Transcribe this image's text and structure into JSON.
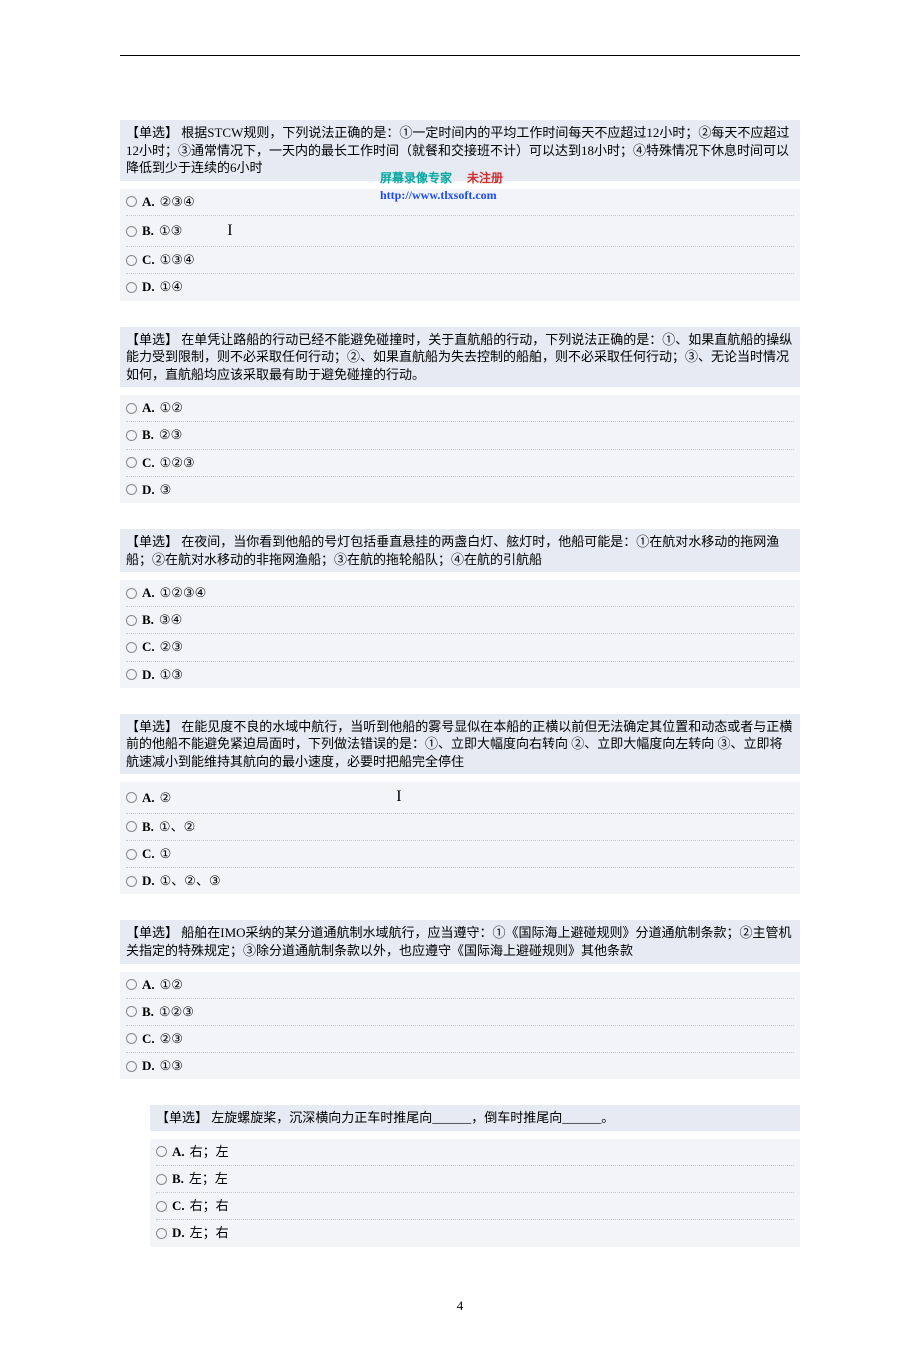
{
  "watermark": {
    "line1a": "屏幕录像专家",
    "line1b": "未注册",
    "line2": "http://www.tlxsoft.com"
  },
  "questions": [
    {
      "prompt": "【单选】 根据STCW规则，下列说法正确的是：①一定时间内的平均工作时间每天不应超过12小时；②每天不应超过12小时；③通常情况下，一天内的最长工作时间（就餐和交接班不计）可以达到18小时；④特殊情况下休息时间可以降低到少于连续的6小时",
      "options": [
        {
          "label": "A.",
          "text": "②③④"
        },
        {
          "label": "B.",
          "text": "①③"
        },
        {
          "label": "C.",
          "text": "①③④"
        },
        {
          "label": "D.",
          "text": "①④"
        }
      ],
      "hasCursor": true
    },
    {
      "prompt": "【单选】 在单凭让路船的行动已经不能避免碰撞时，关于直航船的行动，下列说法正确的是：①、如果直航船的操纵能力受到限制，则不必采取任何行动；②、如果直航船为失去控制的船舶，则不必采取任何行动；③、无论当时情况如何，直航船均应该采取最有助于避免碰撞的行动。",
      "options": [
        {
          "label": "A.",
          "text": "①②"
        },
        {
          "label": "B.",
          "text": "②③"
        },
        {
          "label": "C.",
          "text": "①②③"
        },
        {
          "label": "D.",
          "text": "③"
        }
      ]
    },
    {
      "prompt": "【单选】 在夜间，当你看到他船的号灯包括垂直悬挂的两盏白灯、舷灯时，他船可能是：①在航对水移动的拖网渔船；②在航对水移动的非拖网渔船；③在航的拖轮船队；④在航的引航船",
      "options": [
        {
          "label": "A.",
          "text": "①②③④"
        },
        {
          "label": "B.",
          "text": "③④"
        },
        {
          "label": "C.",
          "text": "②③"
        },
        {
          "label": "D.",
          "text": "①③"
        }
      ]
    },
    {
      "prompt": "【单选】 在能见度不良的水域中航行，当听到他船的雾号显似在本船的正横以前但无法确定其位置和动态或者与正横前的他船不能避免紧迫局面时，下列做法错误的是：①、立即大幅度向右转向 ②、立即大幅度向左转向 ③、立即将航速减小到能维持其航向的最小速度，必要时把船完全停住",
      "options": [
        {
          "label": "A.",
          "text": "②"
        },
        {
          "label": "B.",
          "text": "①、②"
        },
        {
          "label": "C.",
          "text": "①"
        },
        {
          "label": "D.",
          "text": "①、②、③"
        }
      ],
      "midCursor": true
    },
    {
      "prompt": "【单选】 船舶在IMO采纳的某分道通航制水域航行，应当遵守：①《国际海上避碰规则》分道通航制条款；②主管机关指定的特殊规定；③除分道通航制条款以外，也应遵守《国际海上避碰规则》其他条款",
      "options": [
        {
          "label": "A.",
          "text": "①②"
        },
        {
          "label": "B.",
          "text": "①②③"
        },
        {
          "label": "C.",
          "text": "②③"
        },
        {
          "label": "D.",
          "text": "①③"
        }
      ]
    },
    {
      "prompt": "【单选】 左旋螺旋桨，沉深横向力正车时推尾向______，倒车时推尾向______。",
      "options": [
        {
          "label": "A.",
          "text": "右；左"
        },
        {
          "label": "B.",
          "text": "左；左"
        },
        {
          "label": "C.",
          "text": "右；右"
        },
        {
          "label": "D.",
          "text": "左；右"
        }
      ],
      "indented": true
    }
  ],
  "pageNumber": "4",
  "colors": {
    "questionBg": "#e5eaf3",
    "optionsBg": "#f2f4f8",
    "text": "#000000"
  }
}
